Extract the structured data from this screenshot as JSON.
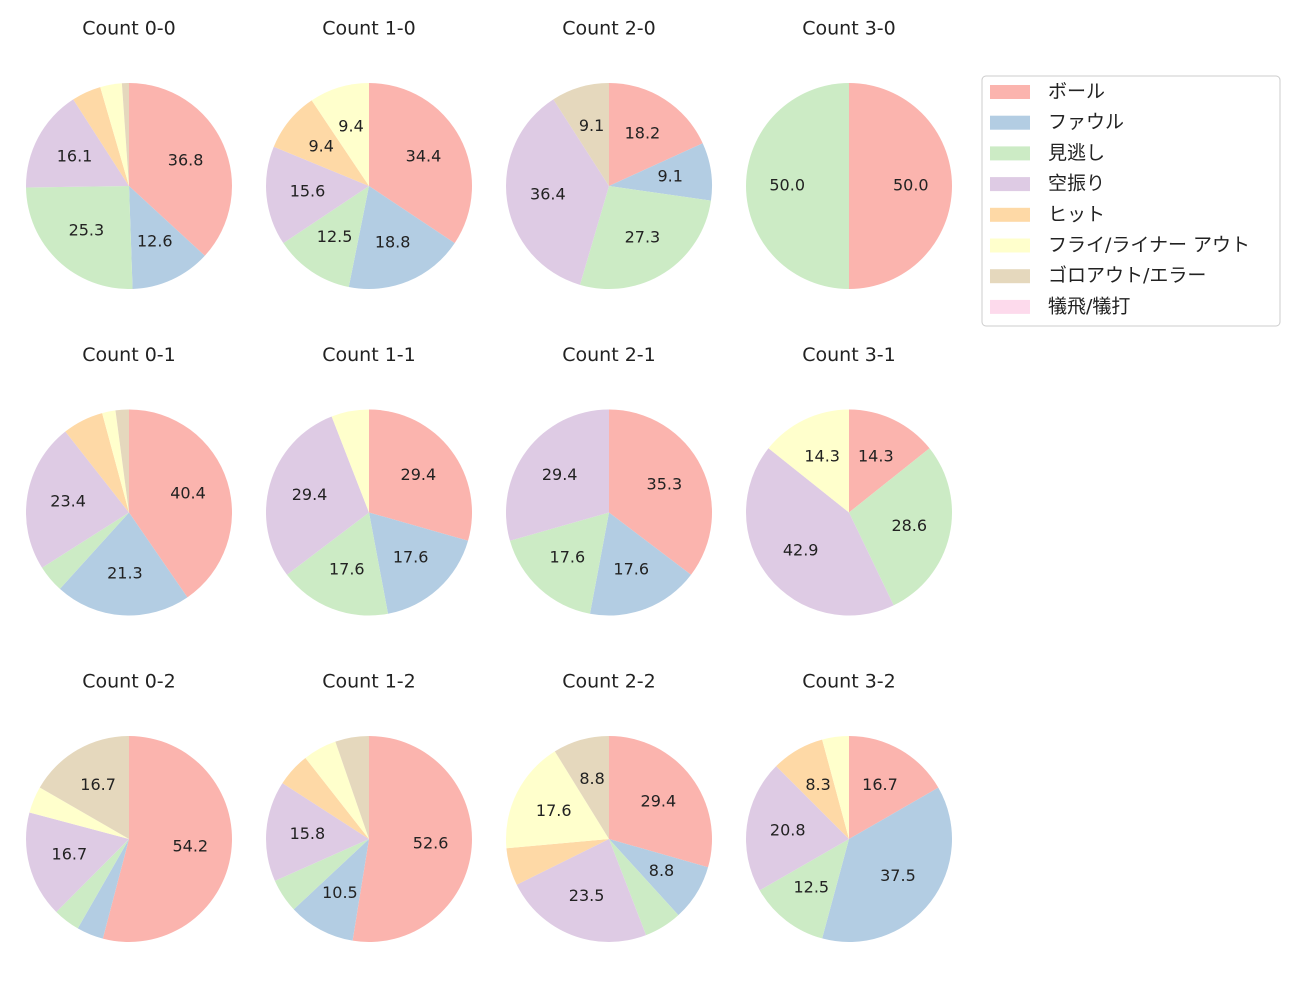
{
  "legend": {
    "categories": [
      "ボール",
      "ファウル",
      "見逃し",
      "空振り",
      "ヒット",
      "フライ/ライナー アウト",
      "ゴロアウト/エラー",
      "犠飛/犠打"
    ],
    "colors": [
      "#fbb4ae",
      "#b3cde3",
      "#ccebc5",
      "#decbe4",
      "#fed9a6",
      "#ffffcc",
      "#e5d8bd",
      "#fddaec"
    ]
  },
  "chart_data": [
    {
      "type": "pie",
      "title": "Count 0-0",
      "values": [
        36.8,
        12.6,
        25.3,
        16.1,
        4.6,
        3.4,
        1.1,
        0
      ]
    },
    {
      "type": "pie",
      "title": "Count 1-0",
      "values": [
        34.4,
        18.8,
        12.5,
        15.6,
        9.4,
        9.4,
        0,
        0
      ]
    },
    {
      "type": "pie",
      "title": "Count 2-0",
      "values": [
        18.2,
        9.1,
        27.3,
        36.4,
        0,
        0,
        9.1,
        0
      ]
    },
    {
      "type": "pie",
      "title": "Count 3-0",
      "values": [
        50,
        0,
        50,
        0,
        0,
        0,
        0,
        0
      ],
      "value_labels": [
        "50.0",
        null,
        "50.0",
        null,
        null,
        null,
        null,
        null
      ]
    },
    {
      "type": "pie",
      "title": "Count 0-1",
      "values": [
        40.4,
        21.3,
        4.3,
        23.4,
        6.4,
        2.1,
        2.1,
        0
      ]
    },
    {
      "type": "pie",
      "title": "Count 1-1",
      "values": [
        29.4,
        17.6,
        17.6,
        29.4,
        0,
        5.9,
        0,
        0
      ]
    },
    {
      "type": "pie",
      "title": "Count 2-1",
      "values": [
        35.3,
        17.6,
        17.6,
        29.4,
        0,
        0,
        0,
        0
      ]
    },
    {
      "type": "pie",
      "title": "Count 3-1",
      "values": [
        14.3,
        0,
        28.6,
        42.9,
        0,
        14.3,
        0,
        0
      ]
    },
    {
      "type": "pie",
      "title": "Count 0-2",
      "values": [
        54.2,
        4.2,
        4.2,
        16.7,
        0,
        4.2,
        16.7,
        0
      ]
    },
    {
      "type": "pie",
      "title": "Count 1-2",
      "values": [
        52.6,
        10.5,
        5.3,
        15.8,
        5.3,
        5.3,
        5.3,
        0
      ]
    },
    {
      "type": "pie",
      "title": "Count 2-2",
      "values": [
        29.4,
        8.8,
        5.9,
        23.5,
        5.9,
        17.6,
        8.8,
        0
      ]
    },
    {
      "type": "pie",
      "title": "Count 3-2",
      "values": [
        16.7,
        37.5,
        12.5,
        20.8,
        8.3,
        4.2,
        0,
        0
      ]
    }
  ]
}
